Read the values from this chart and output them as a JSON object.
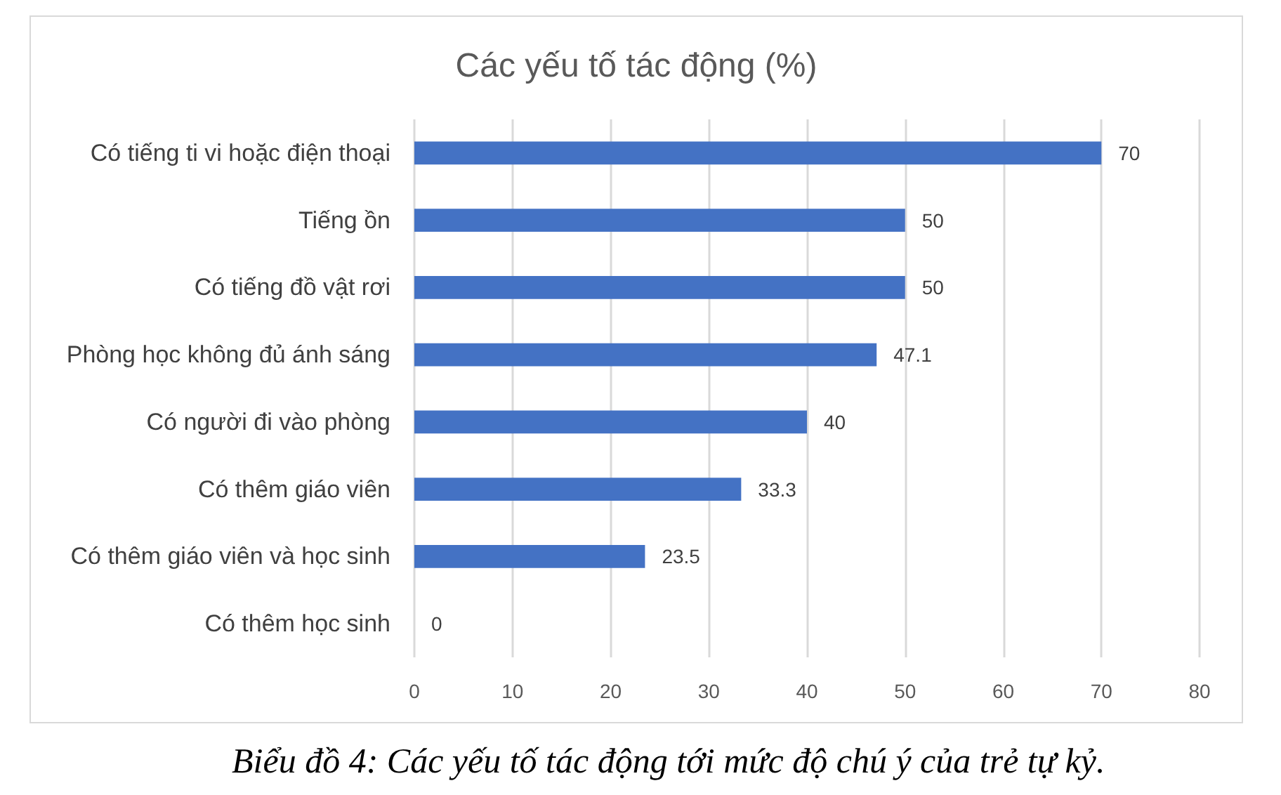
{
  "chart_data": {
    "type": "bar",
    "orientation": "horizontal",
    "title": "Các yếu tố tác động (%)",
    "categories": [
      "Có tiếng ti vi hoặc điện thoại",
      "Tiếng ồn",
      "Có tiếng đồ vật rơi",
      "Phòng học không đủ ánh sáng",
      "Có người đi vào phòng",
      "Có thêm giáo viên",
      "Có thêm giáo viên và học sinh",
      "Có thêm học sinh"
    ],
    "values": [
      70,
      50,
      50,
      47.1,
      40,
      33.3,
      23.5,
      0
    ],
    "color": "#4472c4",
    "xlim": [
      0,
      80
    ],
    "xticks": [
      0,
      10,
      20,
      30,
      40,
      50,
      60,
      70,
      80
    ],
    "grid": "x",
    "data_labels": true,
    "annotations": [
      "Biểu đồ 4: Các yếu tố tác động tới mức độ chú ý của trẻ tự kỷ."
    ]
  }
}
